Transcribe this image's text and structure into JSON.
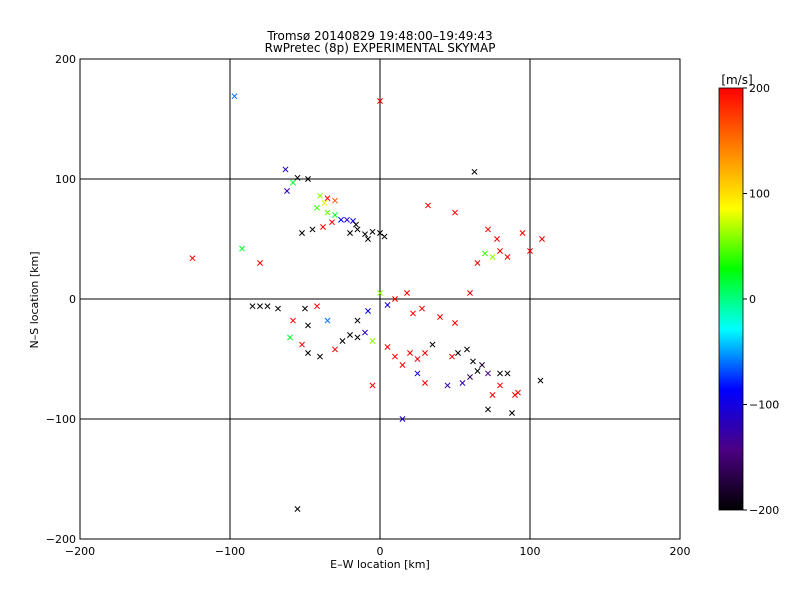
{
  "chart_data": {
    "type": "scatter",
    "title": "Tromsø 20140829 19:48:00–19:49:43",
    "subtitle": "RwPretec (8p) EXPERIMENTAL SKYMAP",
    "xlabel": "E–W location [km]",
    "ylabel": "N–S location [km]",
    "xlim": [
      -200,
      200
    ],
    "ylim": [
      -200,
      200
    ],
    "x_ticks": [
      -200,
      -100,
      0,
      100,
      200
    ],
    "y_ticks": [
      -200,
      -100,
      0,
      100,
      200
    ],
    "x_tick_labels": [
      "−200",
      "−100",
      "0",
      "100",
      "200"
    ],
    "y_tick_labels": [
      "200",
      "100",
      "0",
      "−100",
      "−200"
    ],
    "grid": true,
    "colorbar": {
      "label": "[m/s]",
      "range": [
        -200,
        200
      ],
      "ticks": [
        200,
        100,
        0,
        -100,
        -200
      ],
      "tick_labels": [
        "200",
        "100",
        "0",
        "−100",
        "−200"
      ],
      "colors": [
        "#000000",
        "#4b0082",
        "#0000ff",
        "#00ffff",
        "#00ff00",
        "#ffff00",
        "#ff8000",
        "#ff0000"
      ]
    },
    "series": [
      {
        "marker": "cross",
        "points": [
          {
            "x": -97,
            "y": 169,
            "v": -60
          },
          {
            "x": 0,
            "y": 165,
            "v": 200
          },
          {
            "x": -125,
            "y": 34,
            "v": 200
          },
          {
            "x": 63,
            "y": 106,
            "v": -200
          },
          {
            "x": -63,
            "y": 108,
            "v": -110
          },
          {
            "x": -55,
            "y": 101,
            "v": -200
          },
          {
            "x": -48,
            "y": 100,
            "v": -200
          },
          {
            "x": -62,
            "y": 90,
            "v": -120
          },
          {
            "x": -58,
            "y": 97,
            "v": 20
          },
          {
            "x": -40,
            "y": 86,
            "v": 60
          },
          {
            "x": -35,
            "y": 84,
            "v": 200
          },
          {
            "x": -37,
            "y": 80,
            "v": 80
          },
          {
            "x": -30,
            "y": 82,
            "v": 160
          },
          {
            "x": -42,
            "y": 76,
            "v": 40
          },
          {
            "x": -35,
            "y": 72,
            "v": 50
          },
          {
            "x": -30,
            "y": 70,
            "v": 20
          },
          {
            "x": -26,
            "y": 66,
            "v": -90
          },
          {
            "x": -22,
            "y": 66,
            "v": -110
          },
          {
            "x": -18,
            "y": 65,
            "v": -100
          },
          {
            "x": -16,
            "y": 62,
            "v": -200
          },
          {
            "x": -32,
            "y": 64,
            "v": 200
          },
          {
            "x": -38,
            "y": 60,
            "v": 200
          },
          {
            "x": -20,
            "y": 55,
            "v": -200
          },
          {
            "x": -15,
            "y": 58,
            "v": -200
          },
          {
            "x": -10,
            "y": 54,
            "v": -200
          },
          {
            "x": -5,
            "y": 56,
            "v": -200
          },
          {
            "x": 0,
            "y": 55,
            "v": -200
          },
          {
            "x": 3,
            "y": 52,
            "v": -200
          },
          {
            "x": -8,
            "y": 50,
            "v": -200
          },
          {
            "x": -45,
            "y": 58,
            "v": -200
          },
          {
            "x": -52,
            "y": 55,
            "v": -200
          },
          {
            "x": -92,
            "y": 42,
            "v": 20
          },
          {
            "x": -80,
            "y": 30,
            "v": 200
          },
          {
            "x": -85,
            "y": -6,
            "v": -200
          },
          {
            "x": -80,
            "y": -6,
            "v": -200
          },
          {
            "x": -75,
            "y": -6,
            "v": -200
          },
          {
            "x": -68,
            "y": -8,
            "v": -200
          },
          {
            "x": -50,
            "y": -8,
            "v": -200
          },
          {
            "x": -42,
            "y": -6,
            "v": 200
          },
          {
            "x": -58,
            "y": -18,
            "v": 200
          },
          {
            "x": -48,
            "y": -22,
            "v": -200
          },
          {
            "x": -35,
            "y": -18,
            "v": -60
          },
          {
            "x": -60,
            "y": -32,
            "v": 20
          },
          {
            "x": -52,
            "y": -38,
            "v": 200
          },
          {
            "x": -48,
            "y": -45,
            "v": -200
          },
          {
            "x": -40,
            "y": -48,
            "v": -200
          },
          {
            "x": -30,
            "y": -42,
            "v": 200
          },
          {
            "x": -25,
            "y": -35,
            "v": -200
          },
          {
            "x": -20,
            "y": -30,
            "v": -200
          },
          {
            "x": -15,
            "y": -32,
            "v": -200
          },
          {
            "x": -10,
            "y": -28,
            "v": -120
          },
          {
            "x": -5,
            "y": -35,
            "v": 60
          },
          {
            "x": -5,
            "y": -72,
            "v": 200
          },
          {
            "x": 5,
            "y": -40,
            "v": 200
          },
          {
            "x": 10,
            "y": -48,
            "v": 200
          },
          {
            "x": 15,
            "y": -55,
            "v": 200
          },
          {
            "x": 20,
            "y": -45,
            "v": 200
          },
          {
            "x": 25,
            "y": -50,
            "v": 200
          },
          {
            "x": 30,
            "y": -45,
            "v": 200
          },
          {
            "x": 35,
            "y": -38,
            "v": -200
          },
          {
            "x": 48,
            "y": -48,
            "v": 200
          },
          {
            "x": 52,
            "y": -45,
            "v": -200
          },
          {
            "x": 58,
            "y": -42,
            "v": -200
          },
          {
            "x": 25,
            "y": -62,
            "v": -100
          },
          {
            "x": 30,
            "y": -70,
            "v": 200
          },
          {
            "x": 45,
            "y": -72,
            "v": -120
          },
          {
            "x": 55,
            "y": -70,
            "v": -120
          },
          {
            "x": 60,
            "y": -65,
            "v": -160
          },
          {
            "x": 65,
            "y": -60,
            "v": -200
          },
          {
            "x": 68,
            "y": -55,
            "v": -180
          },
          {
            "x": 62,
            "y": -52,
            "v": -200
          },
          {
            "x": 72,
            "y": -62,
            "v": -140
          },
          {
            "x": 80,
            "y": -62,
            "v": -200
          },
          {
            "x": 85,
            "y": -62,
            "v": -200
          },
          {
            "x": 80,
            "y": -72,
            "v": 200
          },
          {
            "x": 75,
            "y": -80,
            "v": 200
          },
          {
            "x": 92,
            "y": -78,
            "v": 200
          },
          {
            "x": 90,
            "y": -80,
            "v": 200
          },
          {
            "x": 72,
            "y": -92,
            "v": -200
          },
          {
            "x": 88,
            "y": -95,
            "v": -200
          },
          {
            "x": 107,
            "y": -68,
            "v": -200
          },
          {
            "x": 15,
            "y": -100,
            "v": -110
          },
          {
            "x": -55,
            "y": -175,
            "v": -200
          },
          {
            "x": 10,
            "y": 0,
            "v": 200
          },
          {
            "x": 18,
            "y": 5,
            "v": 200
          },
          {
            "x": 22,
            "y": -12,
            "v": 200
          },
          {
            "x": 28,
            "y": -8,
            "v": 200
          },
          {
            "x": 40,
            "y": -15,
            "v": 200
          },
          {
            "x": 50,
            "y": -20,
            "v": 200
          },
          {
            "x": 60,
            "y": 5,
            "v": 200
          },
          {
            "x": 65,
            "y": 30,
            "v": 200
          },
          {
            "x": 32,
            "y": 78,
            "v": 200
          },
          {
            "x": 50,
            "y": 72,
            "v": 200
          },
          {
            "x": 108,
            "y": 50,
            "v": 200
          },
          {
            "x": 100,
            "y": 40,
            "v": 200
          },
          {
            "x": 95,
            "y": 55,
            "v": 200
          },
          {
            "x": 72,
            "y": 58,
            "v": 200
          },
          {
            "x": 80,
            "y": 40,
            "v": 200
          },
          {
            "x": 85,
            "y": 35,
            "v": 200
          },
          {
            "x": 78,
            "y": 50,
            "v": 200
          },
          {
            "x": 75,
            "y": 35,
            "v": 60
          },
          {
            "x": 70,
            "y": 38,
            "v": 40
          },
          {
            "x": 0,
            "y": 5,
            "v": 60
          },
          {
            "x": 5,
            "y": -5,
            "v": -100
          },
          {
            "x": -8,
            "y": -10,
            "v": -90
          },
          {
            "x": -15,
            "y": -18,
            "v": -200
          }
        ]
      }
    ]
  }
}
